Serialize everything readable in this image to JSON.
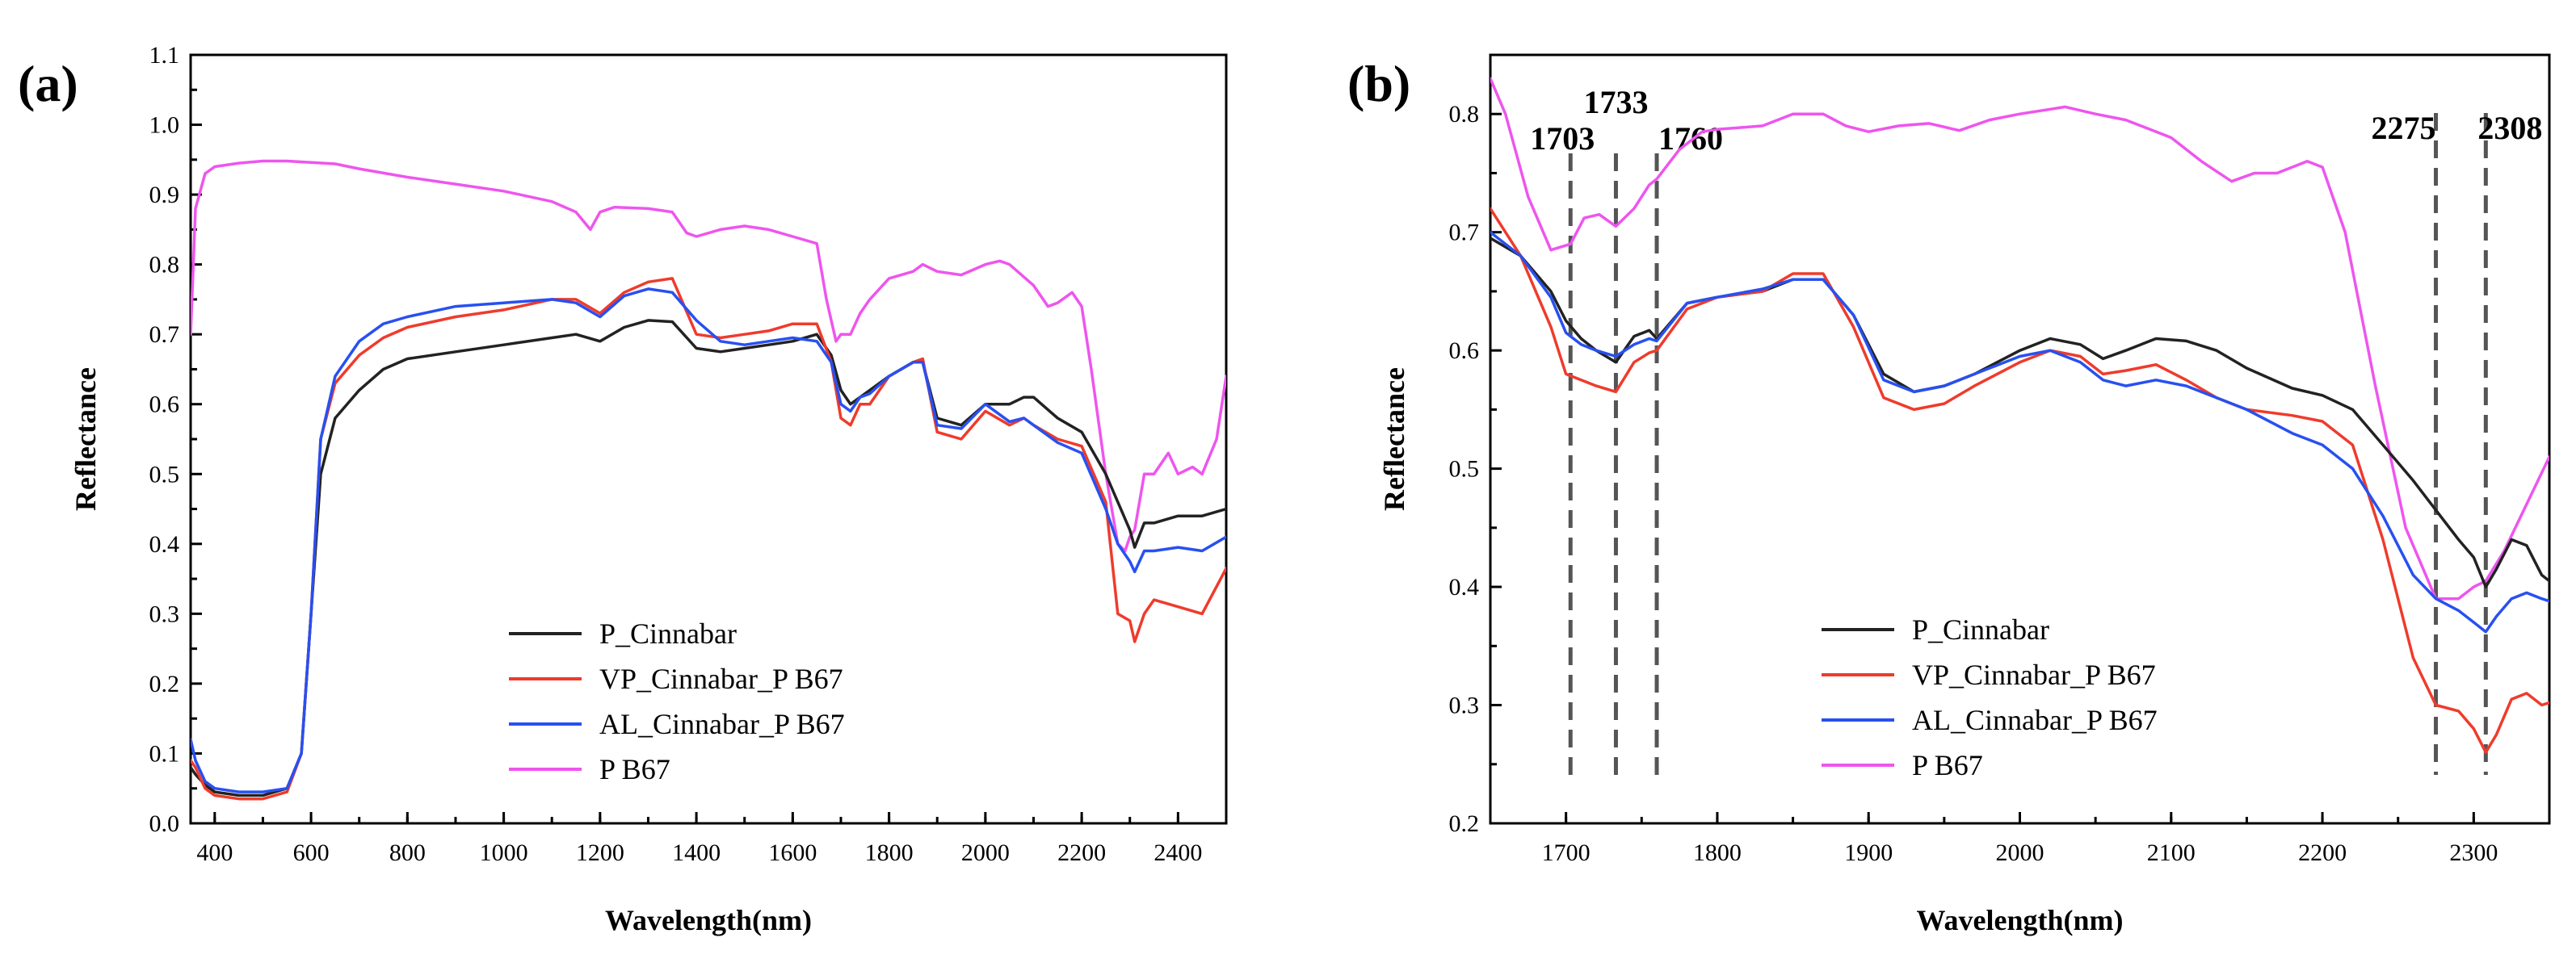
{
  "colors": {
    "P_Cinnabar": "#222222",
    "VP_Cinnabar_P B67": "#ef3b2c",
    "AL_Cinnabar_P B67": "#2850f0",
    "P B67": "#ee55ee"
  },
  "chart_data": [
    {
      "type": "line",
      "panel_label": "(a)",
      "xlabel": "Wavelength(nm)",
      "ylabel": "Reflectance",
      "xlim": [
        350,
        2500
      ],
      "ylim": [
        0.0,
        1.1
      ],
      "xticks": [
        400,
        600,
        800,
        1000,
        1200,
        1400,
        1600,
        1800,
        2000,
        2200,
        2400
      ],
      "xtick_labels": [
        "400",
        "600",
        "800",
        "1000",
        "1200",
        "1400",
        "1600",
        "1800",
        "2000",
        "2200",
        "2400"
      ],
      "yticks": [
        0.0,
        0.1,
        0.2,
        0.3,
        0.4,
        0.5,
        0.6,
        0.7,
        0.8,
        0.9,
        1.0,
        1.1
      ],
      "ytick_labels": [
        "0.0",
        "0.1",
        "0.2",
        "0.3",
        "0.4",
        "0.5",
        "0.6",
        "0.7",
        "0.8",
        "0.9",
        "1.0",
        "1.1"
      ],
      "legend_location": "lower-center",
      "series": [
        {
          "name": "P_Cinnabar",
          "x": [
            350,
            360,
            380,
            400,
            450,
            500,
            550,
            580,
            600,
            620,
            650,
            700,
            750,
            800,
            900,
            1000,
            1100,
            1150,
            1200,
            1250,
            1300,
            1350,
            1400,
            1450,
            1500,
            1550,
            1600,
            1650,
            1680,
            1700,
            1720,
            1740,
            1760,
            1800,
            1850,
            1870,
            1900,
            1950,
            2000,
            2050,
            2080,
            2100,
            2150,
            2200,
            2250,
            2275,
            2300,
            2310,
            2330,
            2350,
            2400,
            2450,
            2500
          ],
          "values": [
            0.08,
            0.07,
            0.055,
            0.045,
            0.04,
            0.04,
            0.05,
            0.1,
            0.3,
            0.5,
            0.58,
            0.62,
            0.65,
            0.665,
            0.675,
            0.685,
            0.695,
            0.7,
            0.69,
            0.71,
            0.72,
            0.718,
            0.68,
            0.675,
            0.68,
            0.685,
            0.69,
            0.7,
            0.67,
            0.62,
            0.6,
            0.61,
            0.62,
            0.64,
            0.66,
            0.66,
            0.58,
            0.57,
            0.6,
            0.6,
            0.61,
            0.61,
            0.58,
            0.56,
            0.5,
            0.46,
            0.42,
            0.395,
            0.43,
            0.43,
            0.44,
            0.44,
            0.45
          ]
        },
        {
          "name": "VP_Cinnabar_P B67",
          "x": [
            350,
            360,
            380,
            400,
            450,
            500,
            550,
            580,
            600,
            620,
            650,
            700,
            750,
            800,
            900,
            1000,
            1100,
            1150,
            1200,
            1250,
            1300,
            1350,
            1400,
            1450,
            1500,
            1550,
            1600,
            1650,
            1680,
            1700,
            1720,
            1740,
            1760,
            1800,
            1850,
            1870,
            1900,
            1950,
            2000,
            2050,
            2080,
            2100,
            2150,
            2200,
            2250,
            2275,
            2300,
            2310,
            2330,
            2350,
            2400,
            2450,
            2500
          ],
          "values": [
            0.09,
            0.08,
            0.05,
            0.04,
            0.035,
            0.035,
            0.045,
            0.1,
            0.3,
            0.55,
            0.63,
            0.67,
            0.695,
            0.71,
            0.725,
            0.735,
            0.75,
            0.75,
            0.73,
            0.76,
            0.775,
            0.78,
            0.7,
            0.695,
            0.7,
            0.705,
            0.715,
            0.715,
            0.66,
            0.58,
            0.57,
            0.6,
            0.6,
            0.64,
            0.66,
            0.665,
            0.56,
            0.55,
            0.59,
            0.57,
            0.58,
            0.57,
            0.55,
            0.54,
            0.46,
            0.3,
            0.29,
            0.26,
            0.3,
            0.32,
            0.31,
            0.3,
            0.365
          ]
        },
        {
          "name": "AL_Cinnabar_P B67",
          "x": [
            350,
            360,
            380,
            400,
            450,
            500,
            550,
            580,
            600,
            620,
            650,
            700,
            750,
            800,
            900,
            1000,
            1100,
            1150,
            1200,
            1250,
            1300,
            1350,
            1400,
            1450,
            1500,
            1550,
            1600,
            1650,
            1680,
            1700,
            1720,
            1740,
            1760,
            1800,
            1850,
            1870,
            1900,
            1950,
            2000,
            2050,
            2080,
            2100,
            2150,
            2200,
            2250,
            2275,
            2300,
            2310,
            2330,
            2350,
            2400,
            2450,
            2500
          ],
          "values": [
            0.12,
            0.09,
            0.06,
            0.05,
            0.045,
            0.045,
            0.05,
            0.1,
            0.3,
            0.55,
            0.64,
            0.69,
            0.715,
            0.725,
            0.74,
            0.745,
            0.75,
            0.745,
            0.725,
            0.755,
            0.765,
            0.76,
            0.72,
            0.69,
            0.685,
            0.69,
            0.695,
            0.69,
            0.66,
            0.6,
            0.59,
            0.61,
            0.615,
            0.64,
            0.66,
            0.66,
            0.57,
            0.565,
            0.6,
            0.575,
            0.58,
            0.57,
            0.545,
            0.53,
            0.45,
            0.4,
            0.375,
            0.36,
            0.39,
            0.39,
            0.395,
            0.39,
            0.41
          ]
        },
        {
          "name": "P B67",
          "x": [
            350,
            360,
            380,
            400,
            450,
            500,
            550,
            600,
            650,
            700,
            800,
            900,
            1000,
            1100,
            1150,
            1180,
            1200,
            1230,
            1300,
            1350,
            1380,
            1400,
            1450,
            1500,
            1550,
            1600,
            1650,
            1670,
            1690,
            1700,
            1720,
            1740,
            1760,
            1800,
            1850,
            1870,
            1900,
            1950,
            2000,
            2030,
            2050,
            2100,
            2130,
            2150,
            2180,
            2200,
            2220,
            2250,
            2275,
            2290,
            2300,
            2310,
            2330,
            2350,
            2380,
            2400,
            2430,
            2450,
            2480,
            2500
          ],
          "values": [
            0.7,
            0.88,
            0.93,
            0.94,
            0.945,
            0.948,
            0.948,
            0.946,
            0.944,
            0.937,
            0.925,
            0.915,
            0.905,
            0.89,
            0.875,
            0.85,
            0.875,
            0.882,
            0.88,
            0.875,
            0.845,
            0.84,
            0.85,
            0.855,
            0.85,
            0.84,
            0.83,
            0.75,
            0.69,
            0.7,
            0.7,
            0.73,
            0.75,
            0.78,
            0.79,
            0.8,
            0.79,
            0.785,
            0.8,
            0.805,
            0.8,
            0.77,
            0.74,
            0.745,
            0.76,
            0.74,
            0.65,
            0.5,
            0.4,
            0.39,
            0.41,
            0.42,
            0.5,
            0.5,
            0.53,
            0.5,
            0.51,
            0.5,
            0.55,
            0.64
          ]
        }
      ]
    },
    {
      "type": "line",
      "panel_label": "(b)",
      "xlabel": "Wavelength(nm)",
      "ylabel": "Reflectance",
      "xlim": [
        1650,
        2350
      ],
      "ylim": [
        0.2,
        0.85
      ],
      "xticks": [
        1700,
        1800,
        1900,
        2000,
        2100,
        2200,
        2300
      ],
      "xtick_labels": [
        "1700",
        "1800",
        "1900",
        "2000",
        "2100",
        "2200",
        "2300"
      ],
      "yticks": [
        0.2,
        0.3,
        0.4,
        0.5,
        0.6,
        0.7,
        0.8
      ],
      "ytick_labels": [
        "0.2",
        "0.3",
        "0.4",
        "0.5",
        "0.6",
        "0.7",
        "0.8"
      ],
      "legend_location": "lower-center",
      "annotations": [
        {
          "x": 1703,
          "label": "1703"
        },
        {
          "x": 1733,
          "label": "1733"
        },
        {
          "x": 1760,
          "label": "1760"
        },
        {
          "x": 2275,
          "label": "2275"
        },
        {
          "x": 2308,
          "label": "2308"
        }
      ],
      "series": [
        {
          "name": "P_Cinnabar",
          "x": [
            1650,
            1670,
            1690,
            1700,
            1710,
            1720,
            1733,
            1745,
            1755,
            1760,
            1780,
            1800,
            1830,
            1850,
            1870,
            1890,
            1910,
            1930,
            1950,
            1970,
            2000,
            2020,
            2040,
            2055,
            2070,
            2090,
            2110,
            2130,
            2150,
            2180,
            2200,
            2220,
            2240,
            2260,
            2275,
            2290,
            2300,
            2308,
            2315,
            2325,
            2335,
            2345,
            2350
          ],
          "values": [
            0.695,
            0.68,
            0.65,
            0.625,
            0.61,
            0.6,
            0.59,
            0.612,
            0.617,
            0.61,
            0.64,
            0.645,
            0.65,
            0.66,
            0.66,
            0.63,
            0.58,
            0.565,
            0.57,
            0.58,
            0.6,
            0.61,
            0.605,
            0.593,
            0.6,
            0.61,
            0.608,
            0.6,
            0.585,
            0.568,
            0.562,
            0.55,
            0.52,
            0.49,
            0.465,
            0.44,
            0.425,
            0.4,
            0.415,
            0.44,
            0.435,
            0.41,
            0.405
          ]
        },
        {
          "name": "VP_Cinnabar_P B67",
          "x": [
            1650,
            1670,
            1690,
            1700,
            1710,
            1720,
            1733,
            1745,
            1755,
            1760,
            1780,
            1800,
            1830,
            1850,
            1870,
            1890,
            1910,
            1930,
            1950,
            1970,
            2000,
            2020,
            2040,
            2055,
            2070,
            2090,
            2110,
            2130,
            2150,
            2180,
            2200,
            2220,
            2240,
            2260,
            2275,
            2290,
            2300,
            2308,
            2315,
            2325,
            2335,
            2345,
            2350
          ],
          "values": [
            0.72,
            0.68,
            0.62,
            0.58,
            0.575,
            0.57,
            0.565,
            0.59,
            0.598,
            0.6,
            0.635,
            0.645,
            0.65,
            0.665,
            0.665,
            0.62,
            0.56,
            0.55,
            0.555,
            0.57,
            0.59,
            0.6,
            0.595,
            0.58,
            0.583,
            0.588,
            0.575,
            0.56,
            0.55,
            0.545,
            0.54,
            0.52,
            0.44,
            0.34,
            0.3,
            0.295,
            0.28,
            0.26,
            0.275,
            0.305,
            0.31,
            0.3,
            0.302
          ]
        },
        {
          "name": "AL_Cinnabar_P B67",
          "x": [
            1650,
            1670,
            1690,
            1700,
            1710,
            1720,
            1733,
            1745,
            1755,
            1760,
            1780,
            1800,
            1830,
            1850,
            1870,
            1890,
            1910,
            1930,
            1950,
            1970,
            2000,
            2020,
            2040,
            2055,
            2070,
            2090,
            2110,
            2130,
            2150,
            2180,
            2200,
            2220,
            2240,
            2260,
            2275,
            2290,
            2300,
            2308,
            2315,
            2325,
            2335,
            2345,
            2350
          ],
          "values": [
            0.7,
            0.68,
            0.645,
            0.615,
            0.605,
            0.6,
            0.595,
            0.605,
            0.61,
            0.608,
            0.64,
            0.645,
            0.652,
            0.66,
            0.66,
            0.63,
            0.575,
            0.565,
            0.57,
            0.58,
            0.595,
            0.6,
            0.59,
            0.575,
            0.57,
            0.575,
            0.57,
            0.56,
            0.55,
            0.53,
            0.52,
            0.5,
            0.46,
            0.41,
            0.39,
            0.38,
            0.37,
            0.362,
            0.375,
            0.39,
            0.395,
            0.39,
            0.388
          ]
        },
        {
          "name": "P B67",
          "x": [
            1650,
            1660,
            1675,
            1690,
            1703,
            1712,
            1722,
            1733,
            1745,
            1755,
            1760,
            1775,
            1790,
            1800,
            1830,
            1850,
            1870,
            1885,
            1900,
            1920,
            1940,
            1960,
            1980,
            2000,
            2030,
            2050,
            2070,
            2100,
            2120,
            2140,
            2155,
            2170,
            2190,
            2200,
            2215,
            2235,
            2255,
            2275,
            2290,
            2300,
            2308,
            2320,
            2335,
            2350
          ],
          "values": [
            0.83,
            0.8,
            0.73,
            0.685,
            0.69,
            0.712,
            0.715,
            0.705,
            0.72,
            0.74,
            0.745,
            0.77,
            0.785,
            0.787,
            0.79,
            0.8,
            0.8,
            0.79,
            0.785,
            0.79,
            0.792,
            0.786,
            0.795,
            0.8,
            0.806,
            0.8,
            0.795,
            0.78,
            0.76,
            0.743,
            0.75,
            0.75,
            0.76,
            0.755,
            0.7,
            0.57,
            0.45,
            0.39,
            0.39,
            0.4,
            0.405,
            0.43,
            0.47,
            0.51
          ]
        }
      ]
    }
  ]
}
